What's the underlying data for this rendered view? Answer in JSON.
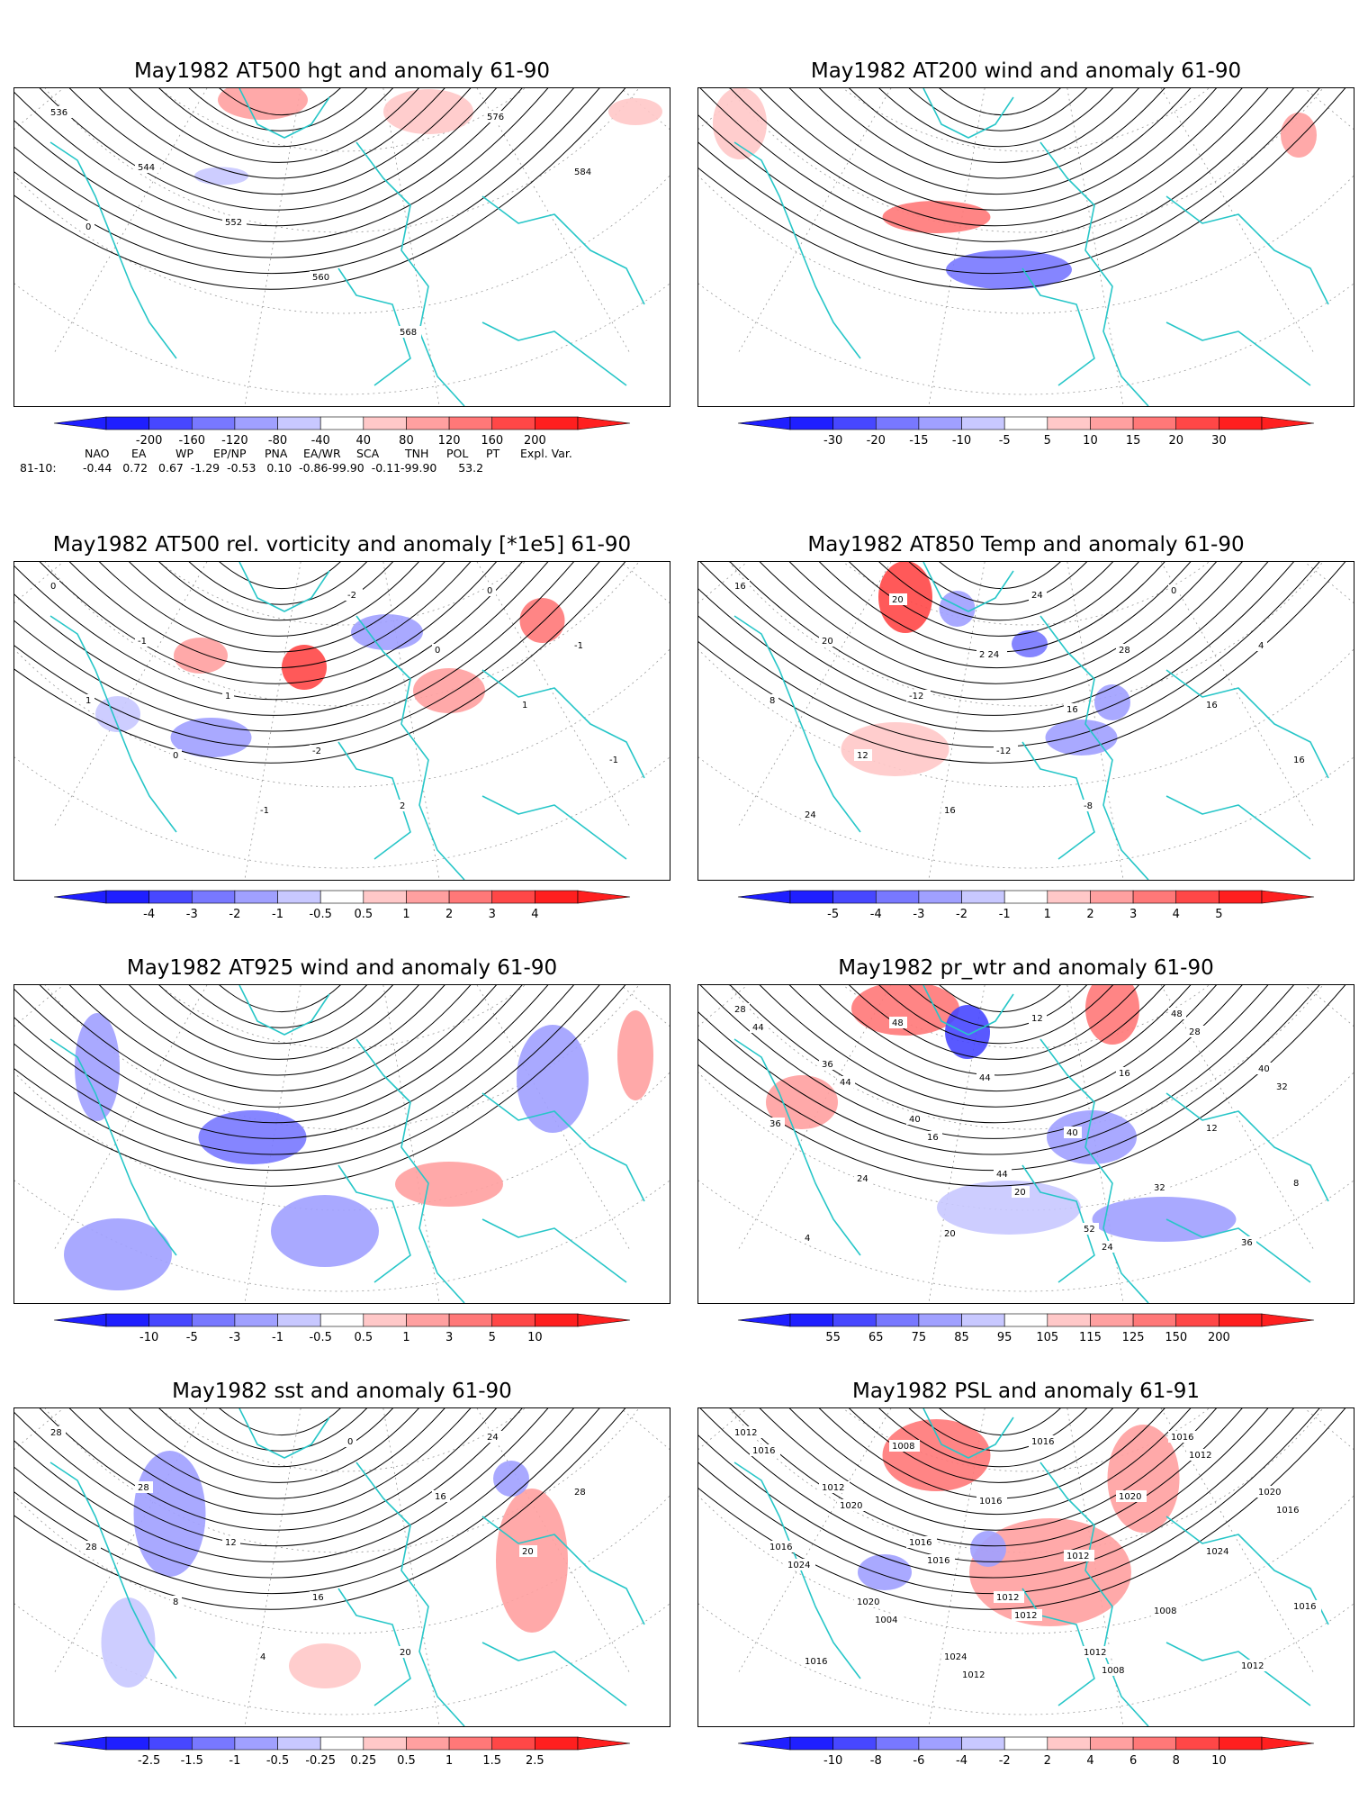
{
  "colors": {
    "coast": "#27c6c8",
    "contour": "#000000",
    "grid": "#999999",
    "cool_dark": "#1f1fff",
    "cool_mid": "#7878ff",
    "cool_light": "#c8c8ff",
    "warm_light": "#ffc8c8",
    "warm_mid": "#ff7878",
    "warm_dark": "#ff1f1f"
  },
  "panels": [
    {
      "title": "May1982 AT500 hgt and anomaly 61-90",
      "colorbar": [
        "-200",
        "-160",
        "-120",
        "-80",
        "-40",
        "40",
        "80",
        "120",
        "160",
        "200"
      ],
      "contour_labels": [
        "536",
        "544",
        "552",
        "560",
        "568",
        "576",
        "584",
        "0"
      ]
    },
    {
      "title": "May1982 AT200 wind and anomaly 61-90",
      "colorbar": [
        "-30",
        "-20",
        "-15",
        "-10",
        "-5",
        "5",
        "10",
        "15",
        "20",
        "30"
      ],
      "contour_labels": []
    },
    {
      "title": "May1982 AT500 rel. vorticity and anomaly [*1e5] 61-90",
      "colorbar": [
        "-4",
        "-3",
        "-2",
        "-1",
        "-0.5",
        "0.5",
        "1",
        "2",
        "3",
        "4"
      ],
      "contour_labels": [
        "0",
        "-1",
        "1",
        "-2",
        "2",
        "0",
        "-1",
        "1",
        "0",
        "-1",
        "-2",
        "0",
        "1",
        "-1"
      ]
    },
    {
      "title": "May1982 AT850 Temp and anomaly 61-90",
      "colorbar": [
        "-5",
        "-4",
        "-3",
        "-2",
        "-1",
        "1",
        "2",
        "3",
        "4",
        "5"
      ],
      "contour_labels": [
        "16",
        "20",
        "-12",
        "-12",
        "-8",
        "0",
        "4",
        "8",
        "12",
        "16",
        "24",
        "28",
        "16",
        "16",
        "24",
        "20",
        "2 24",
        "16"
      ]
    },
    {
      "title": "May1982 AT925 wind and anomaly 61-90",
      "colorbar": [
        "-10",
        "-5",
        "-3",
        "-1",
        "-0.5",
        "0.5",
        "1",
        "3",
        "5",
        "10"
      ],
      "contour_labels": []
    },
    {
      "title": "May1982 pr_wtr and anomaly 61-90",
      "colorbar": [
        "55",
        "65",
        "75",
        "85",
        "95",
        "105",
        "115",
        "125",
        "150",
        "200"
      ],
      "contour_labels": [
        "28",
        "36",
        "40",
        "44",
        "52",
        "48",
        "40",
        "36",
        "24",
        "20",
        "12",
        "16",
        "12",
        "8",
        "4",
        "48",
        "44",
        "40",
        "32",
        "36",
        "44",
        "44",
        "16",
        "20",
        "24",
        "28",
        "32"
      ]
    },
    {
      "title": "May1982 sst and anomaly 61-90",
      "colorbar": [
        "-2.5",
        "-1.5",
        "-1",
        "-0.5",
        "-0.25",
        "0.25",
        "0.5",
        "1",
        "1.5",
        "2.5"
      ],
      "contour_labels": [
        "28",
        "28",
        "12",
        "16",
        "20",
        "24",
        "28",
        "28",
        "8",
        "4",
        "0",
        "16",
        "20"
      ]
    },
    {
      "title": "May1982 PSL and anomaly 61-91",
      "colorbar": [
        "-10",
        "-8",
        "-6",
        "-4",
        "-2",
        "2",
        "4",
        "6",
        "8",
        "10"
      ],
      "contour_labels": [
        "1012",
        "1012",
        "1016",
        "1012",
        "1012",
        "1016",
        "1020",
        "1016",
        "1020",
        "1024",
        "1016",
        "1020",
        "1024",
        "1016",
        "1016",
        "1008",
        "1016",
        "1012",
        "1008",
        "1012",
        "1016",
        "1020",
        "1016",
        "1012",
        "1008",
        "1012",
        "1016",
        "1024",
        "1004",
        "1012"
      ]
    }
  ],
  "teleconnections": {
    "headers": [
      "NAO",
      "EA",
      "WP",
      "EP/NP",
      "PNA",
      "EA/WR",
      "SCA",
      "TNH",
      "POL",
      "PT",
      "Expl. Var."
    ],
    "row_label": "81-10:",
    "values": "-0.44   0.72   0.67  -1.29  -0.53   0.10  -0.86-99.90  -0.11-99.90      53.2"
  }
}
